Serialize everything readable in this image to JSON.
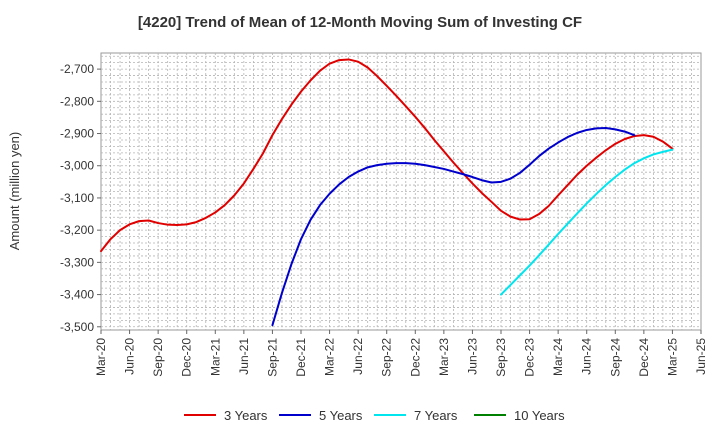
{
  "chart_data": {
    "type": "line",
    "title": "[4220]  Trend of Mean of 12-Month Moving Sum of Investing CF",
    "xlabel": "",
    "ylabel": "Amount (million yen)",
    "ylim": [
      -3510,
      -2650
    ],
    "yticks": [
      -2700,
      -2800,
      -2900,
      -3000,
      -3100,
      -3200,
      -3300,
      -3400,
      -3500
    ],
    "ytick_labels": [
      "-2,700",
      "-2,800",
      "-2,900",
      "-3,000",
      "-3,100",
      "-3,200",
      "-3,300",
      "-3,400",
      "-3,500"
    ],
    "xtick_labels": [
      "Mar-20",
      "Jun-20",
      "Sep-20",
      "Dec-20",
      "Mar-21",
      "Jun-21",
      "Sep-21",
      "Dec-21",
      "Mar-22",
      "Jun-22",
      "Sep-22",
      "Dec-22",
      "Mar-23",
      "Jun-23",
      "Sep-23",
      "Dec-23",
      "Mar-24",
      "Jun-24",
      "Sep-24",
      "Dec-24",
      "Mar-25",
      "Jun-25"
    ],
    "x_unit": "months since Mar-20",
    "grid": true,
    "legend_position": "bottom",
    "series": [
      {
        "name": "3 Years",
        "color": "#e00000",
        "points": [
          [
            0,
            -3265
          ],
          [
            1,
            -3228
          ],
          [
            2,
            -3200
          ],
          [
            3,
            -3182
          ],
          [
            4,
            -3172
          ],
          [
            5,
            -3170
          ],
          [
            6,
            -3178
          ],
          [
            7,
            -3183
          ],
          [
            8,
            -3184
          ],
          [
            9,
            -3182
          ],
          [
            10,
            -3175
          ],
          [
            11,
            -3162
          ],
          [
            12,
            -3145
          ],
          [
            13,
            -3122
          ],
          [
            14,
            -3092
          ],
          [
            15,
            -3055
          ],
          [
            16,
            -3010
          ],
          [
            17,
            -2962
          ],
          [
            18,
            -2905
          ],
          [
            19,
            -2855
          ],
          [
            20,
            -2810
          ],
          [
            21,
            -2770
          ],
          [
            22,
            -2735
          ],
          [
            23,
            -2705
          ],
          [
            24,
            -2683
          ],
          [
            25,
            -2672
          ],
          [
            26,
            -2670
          ],
          [
            27,
            -2677
          ],
          [
            28,
            -2695
          ],
          [
            29,
            -2722
          ],
          [
            30,
            -2752
          ],
          [
            31,
            -2783
          ],
          [
            32,
            -2815
          ],
          [
            33,
            -2848
          ],
          [
            34,
            -2883
          ],
          [
            35,
            -2920
          ],
          [
            36,
            -2955
          ],
          [
            37,
            -2990
          ],
          [
            38,
            -3023
          ],
          [
            39,
            -3055
          ],
          [
            40,
            -3085
          ],
          [
            41,
            -3112
          ],
          [
            42,
            -3140
          ],
          [
            43,
            -3158
          ],
          [
            44,
            -3167
          ],
          [
            45,
            -3166
          ],
          [
            46,
            -3150
          ],
          [
            47,
            -3125
          ],
          [
            48,
            -3092
          ],
          [
            49,
            -3060
          ],
          [
            50,
            -3028
          ],
          [
            51,
            -3000
          ],
          [
            52,
            -2975
          ],
          [
            53,
            -2952
          ],
          [
            54,
            -2932
          ],
          [
            55,
            -2917
          ],
          [
            56,
            -2908
          ],
          [
            57,
            -2905
          ],
          [
            58,
            -2910
          ],
          [
            59,
            -2925
          ],
          [
            60,
            -2947
          ]
        ]
      },
      {
        "name": "5 Years",
        "color": "#0000cc",
        "points": [
          [
            18,
            -3495
          ],
          [
            19,
            -3395
          ],
          [
            20,
            -3305
          ],
          [
            21,
            -3228
          ],
          [
            22,
            -3168
          ],
          [
            23,
            -3122
          ],
          [
            24,
            -3087
          ],
          [
            25,
            -3058
          ],
          [
            26,
            -3035
          ],
          [
            27,
            -3018
          ],
          [
            28,
            -3005
          ],
          [
            29,
            -2998
          ],
          [
            30,
            -2994
          ],
          [
            31,
            -2992
          ],
          [
            32,
            -2992
          ],
          [
            33,
            -2994
          ],
          [
            34,
            -2998
          ],
          [
            35,
            -3004
          ],
          [
            36,
            -3010
          ],
          [
            37,
            -3018
          ],
          [
            38,
            -3026
          ],
          [
            39,
            -3035
          ],
          [
            40,
            -3045
          ],
          [
            41,
            -3052
          ],
          [
            42,
            -3050
          ],
          [
            43,
            -3040
          ],
          [
            44,
            -3022
          ],
          [
            45,
            -2997
          ],
          [
            46,
            -2970
          ],
          [
            47,
            -2947
          ],
          [
            48,
            -2928
          ],
          [
            49,
            -2911
          ],
          [
            50,
            -2898
          ],
          [
            51,
            -2889
          ],
          [
            52,
            -2884
          ],
          [
            53,
            -2883
          ],
          [
            54,
            -2887
          ],
          [
            55,
            -2894
          ],
          [
            56,
            -2905
          ]
        ]
      },
      {
        "name": "7 Years",
        "color": "#00e5ee",
        "points": [
          [
            42,
            -3400
          ],
          [
            43,
            -3370
          ],
          [
            44,
            -3340
          ],
          [
            45,
            -3310
          ],
          [
            46,
            -3278
          ],
          [
            47,
            -3245
          ],
          [
            48,
            -3212
          ],
          [
            49,
            -3180
          ],
          [
            50,
            -3148
          ],
          [
            51,
            -3117
          ],
          [
            52,
            -3088
          ],
          [
            53,
            -3060
          ],
          [
            54,
            -3035
          ],
          [
            55,
            -3012
          ],
          [
            56,
            -2992
          ],
          [
            57,
            -2977
          ],
          [
            58,
            -2965
          ],
          [
            59,
            -2957
          ],
          [
            60,
            -2950
          ]
        ]
      },
      {
        "name": "10 Years",
        "color": "#008000",
        "points": []
      }
    ]
  }
}
